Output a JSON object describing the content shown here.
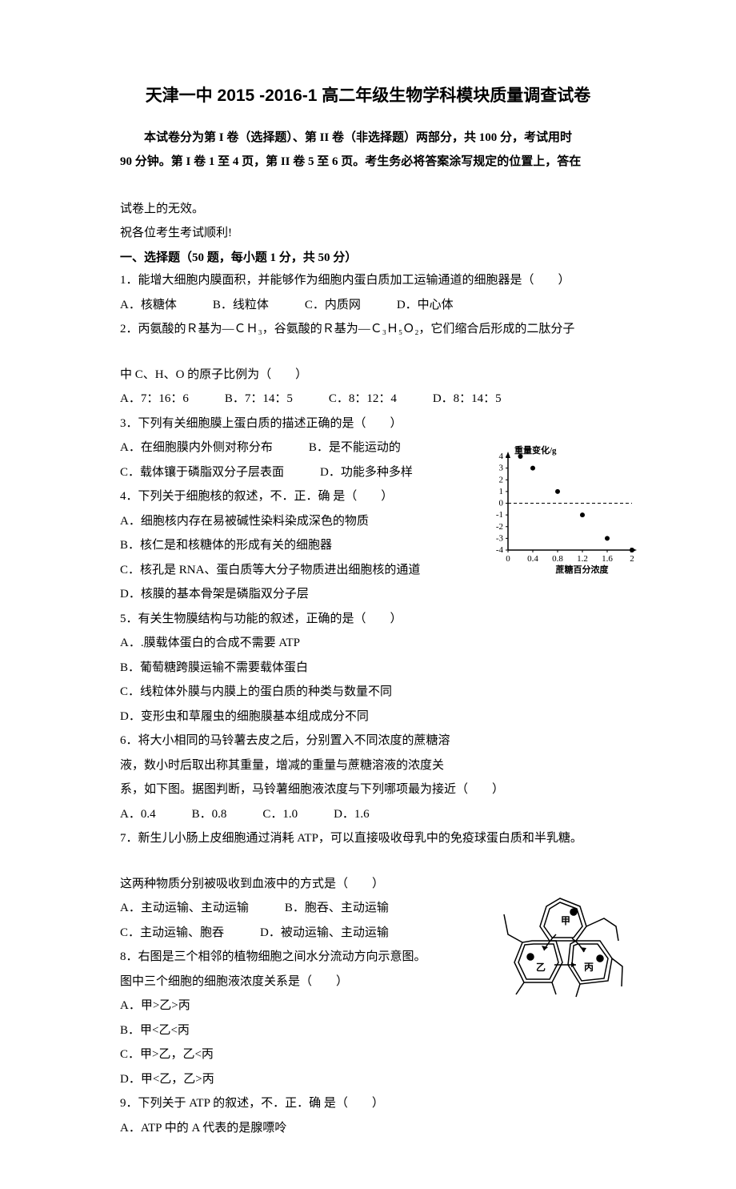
{
  "title": "天津一中 2015 -2016-1 高二年级生物学科模块质量调查试卷",
  "intro_line1": "本试卷分为第 I 卷（选择题）、第 II 卷（非选择题）两部分，共 100 分，考试用时",
  "intro_line2": "90 分钟。第 I 卷 1 至 4 页，第 II 卷 5 至 6 页。考生务必将答案涂写规定的位置上，答在",
  "invalid_note": "试卷上的无效。",
  "wish": "祝各位考生考试顺利!",
  "section1_header": "一、选择题（50 题，每小题 1 分，共 50 分）",
  "q1": {
    "text": "1．能增大细胞内膜面积，并能够作为细胞内蛋白质加工运输通道的细胞器是（　　）",
    "opts": "A．核糖体　　　B．线粒体　　　C．内质网　　　D．中心体"
  },
  "q2": {
    "text": "2．丙氨酸的Ｒ基为—ＣＨ₃，谷氨酸的Ｒ基为—Ｃ₃Ｈ₅Ｏ₂，它们缩合后形成的二肽分子",
    "text2": "中 C、H、O 的原子比例为（　　）",
    "opts": "A．7：16：6　　　B．7：14：5　　　C．8：12：4　　　D．8：14：5"
  },
  "q3": {
    "text": "3．下列有关细胞膜上蛋白质的描述正确的是（　　）",
    "optA": "A．在细胞膜内外侧对称分布　　　B．是不能运动的",
    "optC": "C．载体镶于磷脂双分子层表面　　　D．功能多种多样"
  },
  "q4": {
    "text": "4．下列关于细胞核的叙述，不．正．确 是（　　）",
    "optA": "A．细胞核内存在易被碱性染料染成深色的物质",
    "optB": "B．核仁是和核糖体的形成有关的细胞器",
    "optC": "C．核孔是 RNA、蛋白质等大分子物质进出细胞核的通道",
    "optD": "D．核膜的基本骨架是磷脂双分子层"
  },
  "q5": {
    "text": "5．有关生物膜结构与功能的叙述，正确的是（　　）",
    "optA": "A．.膜载体蛋白的合成不需要 ATP",
    "optB": "B．葡萄糖跨膜运输不需要载体蛋白",
    "optC": "C．线粒体外膜与内膜上的蛋白质的种类与数量不同",
    "optD": "D．变形虫和草履虫的细胞膜基本组成成分不同"
  },
  "q6": {
    "text1": "6．将大小相同的马铃薯去皮之后，分别置入不同浓度的蔗糖溶",
    "text2": "液，数小时后取出称其重量，增减的重量与蔗糖溶液的浓度关",
    "text3": "系，如下图。据图判断，马铃薯细胞液浓度与下列哪项最为接近（　　）",
    "opts": "A．0.4　　　B．0.8　　　C．1.0　　　D．1.6"
  },
  "q7": {
    "text": "7．新生儿小肠上皮细胞通过消耗 ATP，可以直接吸收母乳中的免疫球蛋白质和半乳糖。",
    "text2": "这两种物质分别被吸收到血液中的方式是（　　）",
    "optA": "A．主动运输、主动运输　　　B．胞吞、主动运输",
    "optC": "C．主动运输、胞吞　　　D．被动运输、主动运输"
  },
  "q8": {
    "text1": "8．右图是三个相邻的植物细胞之间水分流动方向示意图。",
    "text2": "图中三个细胞的细胞液浓度关系是（　　）",
    "optA": "A．甲>乙>丙",
    "optB": "B．甲<乙<丙",
    "optC": "C．甲>乙，乙<丙",
    "optD": "D．甲<乙，乙>丙"
  },
  "q9": {
    "text": "9．下列关于 ATP 的叙述，不．正．确 是（　　）",
    "optA": "A．ATP 中的 A 代表的是腺嘌呤"
  },
  "chart": {
    "type": "scatter",
    "x_values": [
      0.2,
      0.4,
      0.8,
      1.2,
      1.6,
      2.0
    ],
    "y_values": [
      4,
      3,
      1,
      -1,
      -3,
      -4
    ],
    "xlim": [
      0,
      2.0
    ],
    "ylim": [
      -4,
      4
    ],
    "x_ticks": [
      0,
      0.4,
      0.8,
      1.2,
      1.6,
      2.0
    ],
    "y_ticks": [
      -4,
      -3,
      -2,
      -1,
      0,
      1,
      2,
      3,
      4
    ],
    "y_label": "重量变化/g",
    "x_label": "蔗糖百分浓度",
    "axis_color": "#000000",
    "point_color": "#000000",
    "dash_line_y": 0,
    "background": "#ffffff",
    "font_size": 11
  },
  "diagram": {
    "type": "hexagonal-cells",
    "labels": [
      "甲",
      "乙",
      "丙"
    ],
    "stroke": "#000000",
    "fill": "#ffffff"
  }
}
